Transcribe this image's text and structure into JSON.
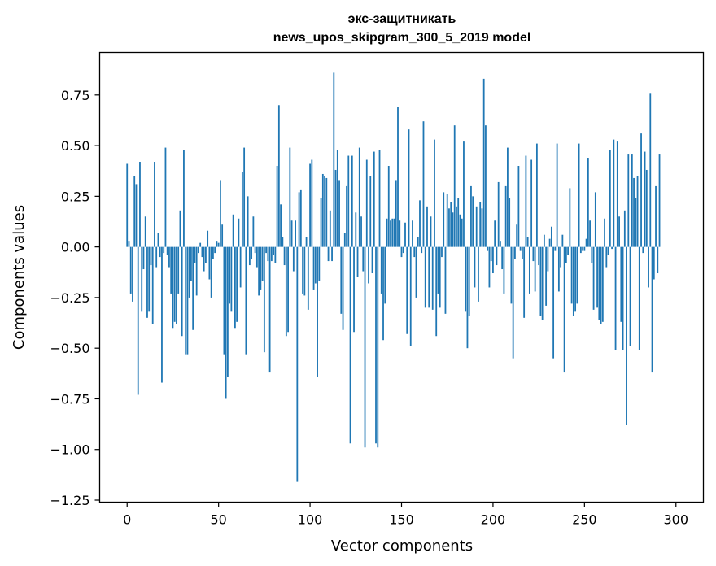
{
  "chart_data": {
    "type": "bar",
    "title": "экс-защитникать",
    "subtitle": "news_upos_skipgram_300_5_2019 model",
    "xlabel": "Vector components",
    "ylabel": "Components values",
    "xlim": [
      -15,
      315
    ],
    "ylim": [
      -1.26,
      0.96
    ],
    "xticks": [
      0,
      50,
      100,
      150,
      200,
      250,
      300
    ],
    "yticks": [
      -1.25,
      -1.0,
      -0.75,
      -0.5,
      -0.25,
      0.0,
      0.25,
      0.5,
      0.75
    ],
    "ytick_labels": [
      "−1.25",
      "−1.00",
      "−0.75",
      "−0.50",
      "−0.25",
      "0.00",
      "0.25",
      "0.50",
      "0.75"
    ],
    "bar_color": "#1f77b4",
    "grid": false,
    "x": "0..299 (component index)",
    "values": [
      0.41,
      0.03,
      -0.23,
      -0.27,
      0.35,
      0.31,
      -0.73,
      0.42,
      -0.32,
      -0.11,
      0.15,
      -0.35,
      -0.32,
      -0.09,
      -0.38,
      0.42,
      -0.1,
      0.07,
      -0.05,
      -0.67,
      -0.03,
      0.49,
      -0.04,
      -0.1,
      -0.23,
      -0.4,
      -0.37,
      -0.38,
      -0.23,
      0.18,
      -0.44,
      0.48,
      -0.53,
      -0.53,
      -0.25,
      -0.17,
      -0.41,
      -0.08,
      -0.24,
      -0.03,
      0.02,
      -0.05,
      -0.12,
      -0.08,
      0.08,
      -0.16,
      -0.25,
      -0.06,
      -0.03,
      0.03,
      0.02,
      0.33,
      0.11,
      -0.53,
      -0.75,
      -0.64,
      -0.28,
      -0.32,
      0.16,
      -0.4,
      -0.37,
      0.14,
      -0.2,
      0.37,
      0.49,
      -0.53,
      0.25,
      -0.09,
      -0.06,
      0.15,
      -0.03,
      -0.1,
      -0.24,
      -0.21,
      -0.17,
      -0.52,
      -0.03,
      -0.07,
      -0.62,
      -0.07,
      -0.04,
      -0.08,
      0.4,
      0.7,
      0.21,
      0.05,
      -0.09,
      -0.44,
      -0.42,
      0.49,
      0.13,
      -0.12,
      0.13,
      -1.16,
      0.27,
      0.28,
      -0.23,
      -0.24,
      0.05,
      -0.31,
      0.41,
      0.43,
      -0.21,
      -0.18,
      -0.64,
      -0.17,
      0.24,
      0.36,
      0.35,
      0.34,
      -0.07,
      0.18,
      -0.07,
      0.86,
      0.38,
      0.48,
      0.33,
      -0.33,
      -0.41,
      0.07,
      0.3,
      0.45,
      -0.97,
      0.45,
      -0.42,
      0.17,
      -0.15,
      0.49,
      0.15,
      -0.12,
      -0.99,
      0.43,
      -0.18,
      0.35,
      -0.13,
      0.47,
      -0.97,
      -0.99,
      0.48,
      -0.23,
      -0.46,
      -0.28,
      0.14,
      0.4,
      0.13,
      0.14,
      0.14,
      0.33,
      0.69,
      0.13,
      -0.05,
      -0.03,
      0.12,
      -0.43,
      0.58,
      -0.49,
      0.13,
      -0.05,
      -0.25,
      0.05,
      0.23,
      -0.03,
      0.62,
      -0.3,
      0.2,
      -0.3,
      0.15,
      -0.31,
      0.53,
      -0.44,
      -0.23,
      -0.3,
      -0.05,
      0.27,
      -0.33,
      0.26,
      0.19,
      0.22,
      0.17,
      0.6,
      0.2,
      0.24,
      0.16,
      0.14,
      0.52,
      -0.32,
      -0.5,
      -0.34,
      0.3,
      0.25,
      -0.2,
      0.2,
      -0.27,
      0.22,
      0.19,
      0.83,
      0.6,
      -0.02,
      -0.2,
      -0.07,
      -0.13,
      0.13,
      -0.09,
      0.32,
      0.03,
      -0.11,
      -0.23,
      0.3,
      0.49,
      0.24,
      -0.28,
      -0.55,
      -0.06,
      0.11,
      0.4,
      -0.02,
      -0.06,
      -0.35,
      0.45,
      0.05,
      -0.23,
      0.43,
      -0.07,
      -0.22,
      0.51,
      -0.09,
      -0.34,
      -0.36,
      0.06,
      -0.29,
      -0.12,
      0.04,
      0.1,
      -0.55,
      -0.02,
      0.51,
      -0.22,
      -0.1,
      0.06,
      -0.62,
      -0.08,
      -0.04,
      0.29,
      -0.28,
      -0.34,
      -0.32,
      -0.28,
      0.51,
      -0.03,
      -0.02,
      -0.02,
      0.04,
      0.44,
      0.13,
      -0.08,
      -0.31,
      0.27,
      -0.3,
      -0.36,
      -0.38,
      -0.37,
      0.14,
      -0.1,
      -0.04,
      0.48,
      -0.01,
      0.53,
      -0.51,
      0.52,
      0.15,
      -0.37,
      -0.51,
      0.18,
      -0.88,
      0.46,
      -0.49,
      0.46,
      0.34,
      0.24,
      0.35,
      -0.51,
      0.56,
      -0.03,
      0.47,
      0.38,
      -0.2,
      0.76,
      -0.62,
      -0.16,
      0.3,
      -0.13,
      0.46
    ]
  }
}
